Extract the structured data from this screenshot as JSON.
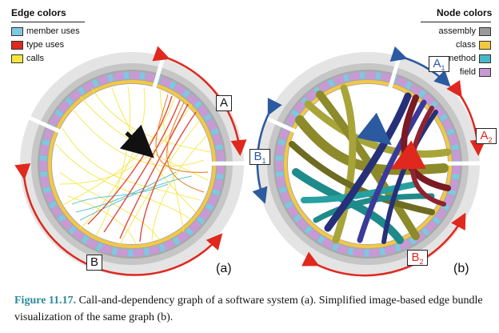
{
  "legend": {
    "edge_title": "Edge colors",
    "edge_items": [
      {
        "label": "member uses",
        "color": "#7ec8e3"
      },
      {
        "label": "type uses",
        "color": "#e0281e"
      },
      {
        "label": "calls",
        "color": "#f2e63a"
      }
    ],
    "node_title": "Node colors",
    "node_items": [
      {
        "label": "assembly",
        "color": "#9a9a9a"
      },
      {
        "label": "class",
        "color": "#f5c842"
      },
      {
        "label": "method",
        "color": "#48b8c8"
      },
      {
        "label": "field",
        "color": "#c79ad6"
      }
    ]
  },
  "panel_a": {
    "tag": "(a)",
    "labels": [
      "A",
      "B"
    ]
  },
  "panel_b": {
    "tag": "(b)",
    "labels": [
      {
        "main": "A",
        "sub": "1"
      },
      {
        "main": "A",
        "sub": "2"
      },
      {
        "main": "B",
        "sub": "1"
      },
      {
        "main": "B",
        "sub": "2"
      }
    ]
  },
  "caption": {
    "number": "Figure 11.17.",
    "text": " Call-and-dependency graph of a software system (a). Simplified image-based edge bundle visualization of the same graph (b)."
  },
  "colors": {
    "arrow_red": "#e0281e",
    "arrow_blue": "#2c5aa0",
    "ring_grey": "#d9d9d9",
    "bundle_olive": "#8c8a2a",
    "bundle_navy": "#26307a",
    "bundle_maroon": "#7a1a22",
    "bundle_teal": "#1f8a8a"
  }
}
